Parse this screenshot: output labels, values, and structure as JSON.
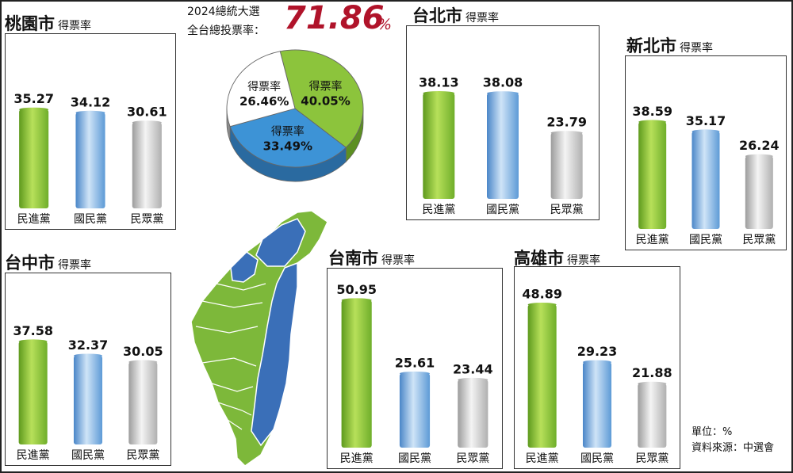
{
  "national": {
    "line1": "2024總統大選",
    "line2": "全台總投票率：",
    "turnout": "71.86",
    "unit": "%"
  },
  "panel_subtitle": "得票率",
  "pie_label": "得票率",
  "footer": {
    "unit": "單位：%",
    "source": "資料來源：中選會"
  },
  "colors": {
    "dpp_green": "#8cc43c",
    "kmt_blue": "#3d93d6",
    "tpp_gray": "#c3c3c3",
    "accent_red": "#b0132a",
    "map_blue": "#3a6fb8",
    "map_green": "#7db83a"
  },
  "cities": [
    {
      "key": "taoyuan",
      "name": "桃園市"
    },
    {
      "key": "taipei",
      "name": "台北市"
    },
    {
      "key": "newtaipei",
      "name": "新北市"
    },
    {
      "key": "taichung",
      "name": "台中市"
    },
    {
      "key": "tainan",
      "name": "台南市"
    },
    {
      "key": "kaohsiung",
      "name": "高雄市"
    }
  ],
  "chart_data": [
    {
      "type": "pie",
      "categories": [
        "得票率",
        "得票率",
        "得票率"
      ],
      "values": [
        40.05,
        33.49,
        26.46
      ],
      "colors": [
        "#8cc43c",
        "#3d93d6",
        "#ffffff"
      ]
    },
    {
      "type": "bar",
      "title": "桃園市",
      "subtitle": "得票率",
      "categories": [
        "民進黨",
        "國民黨",
        "民眾黨"
      ],
      "values": [
        35.27,
        34.12,
        30.61
      ]
    },
    {
      "type": "bar",
      "title": "台北市",
      "subtitle": "得票率",
      "categories": [
        "民進黨",
        "國民黨",
        "民眾黨"
      ],
      "values": [
        38.13,
        38.08,
        23.79
      ]
    },
    {
      "type": "bar",
      "title": "新北市",
      "subtitle": "得票率",
      "categories": [
        "民進黨",
        "國民黨",
        "民眾黨"
      ],
      "values": [
        38.59,
        35.17,
        26.24
      ]
    },
    {
      "type": "bar",
      "title": "台中市",
      "subtitle": "得票率",
      "categories": [
        "民進黨",
        "國民黨",
        "民眾黨"
      ],
      "values": [
        37.58,
        32.37,
        30.05
      ]
    },
    {
      "type": "bar",
      "title": "台南市",
      "subtitle": "得票率",
      "categories": [
        "民進黨",
        "國民黨",
        "民眾黨"
      ],
      "values": [
        50.95,
        25.61,
        23.44
      ]
    },
    {
      "type": "bar",
      "title": "高雄市",
      "subtitle": "得票率",
      "categories": [
        "民進黨",
        "國民黨",
        "民眾黨"
      ],
      "values": [
        48.89,
        29.23,
        21.88
      ]
    }
  ]
}
